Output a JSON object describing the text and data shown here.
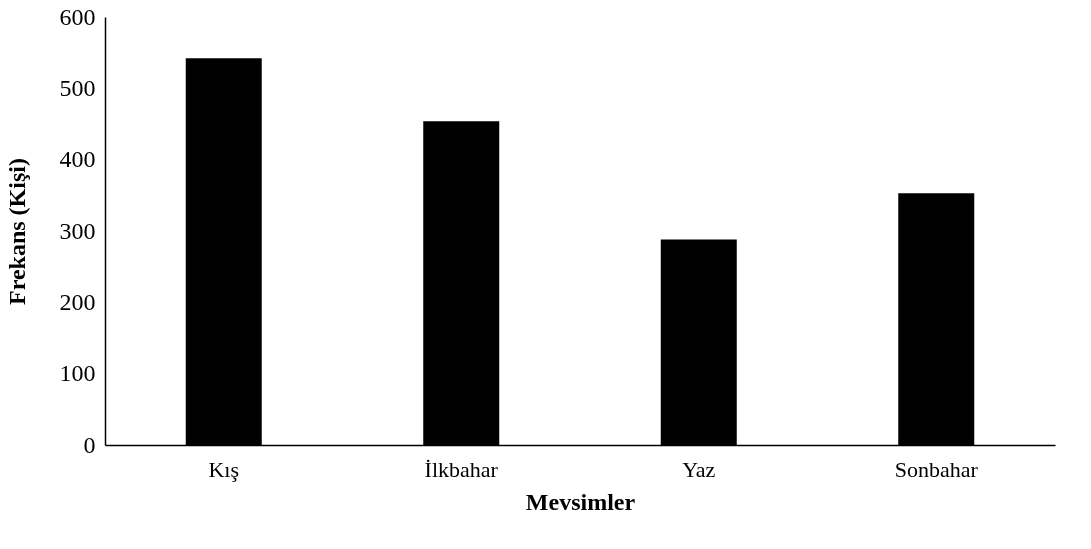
{
  "chart_data": {
    "type": "bar",
    "xlabel": "Mevsimler",
    "ylabel": "Frekans (Kişi)",
    "categories": [
      "Kış",
      "İlkbahar",
      "Yaz",
      "Sonbahar"
    ],
    "values": [
      542,
      454,
      288,
      353
    ],
    "color": "#000000",
    "ylim": [
      0,
      600
    ],
    "yticks": [
      0,
      100,
      200,
      300,
      400,
      500,
      600
    ],
    "grid": false
  }
}
